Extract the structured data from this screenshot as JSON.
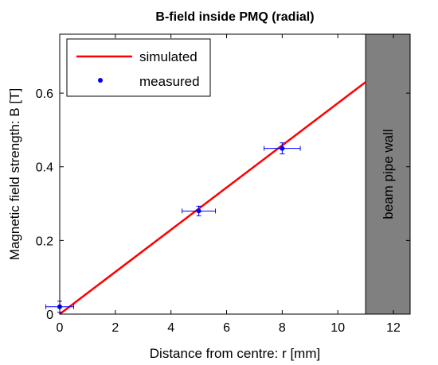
{
  "chart_data": {
    "type": "line",
    "title": "B-field inside PMQ (radial)",
    "xlabel": "Distance from centre: r [mm]",
    "ylabel": "Magnetic field strength: B [T]",
    "xlim": [
      0,
      12.6
    ],
    "ylim": [
      0,
      0.76
    ],
    "xticks": [
      0,
      2,
      4,
      6,
      8,
      10,
      12
    ],
    "yticks": [
      0,
      0.2,
      0.4,
      0.6
    ],
    "xtick_labels": [
      "0",
      "2",
      "4",
      "6",
      "8",
      "10",
      "12"
    ],
    "ytick_labels": [
      "0",
      "0.2",
      "0.4",
      "0.6"
    ],
    "grid": false,
    "legend_position": "top-left",
    "series": [
      {
        "name": "simulated",
        "kind": "line",
        "color": "#ff0000",
        "x": [
          0,
          11
        ],
        "y": [
          0,
          0.63
        ]
      },
      {
        "name": "measured",
        "kind": "scatter_errorbar",
        "color": "#0000ff",
        "points": [
          {
            "x": 0,
            "y": 0.02,
            "xerr": 0.5,
            "yerr": 0.015
          },
          {
            "x": 5,
            "y": 0.28,
            "xerr": 0.6,
            "yerr": 0.013
          },
          {
            "x": 8,
            "y": 0.45,
            "xerr": 0.65,
            "yerr": 0.015
          }
        ]
      }
    ],
    "shaded_region": {
      "x_start": 11,
      "x_end": 12.6,
      "label": "beam pipe wall",
      "color": "#808080"
    }
  }
}
